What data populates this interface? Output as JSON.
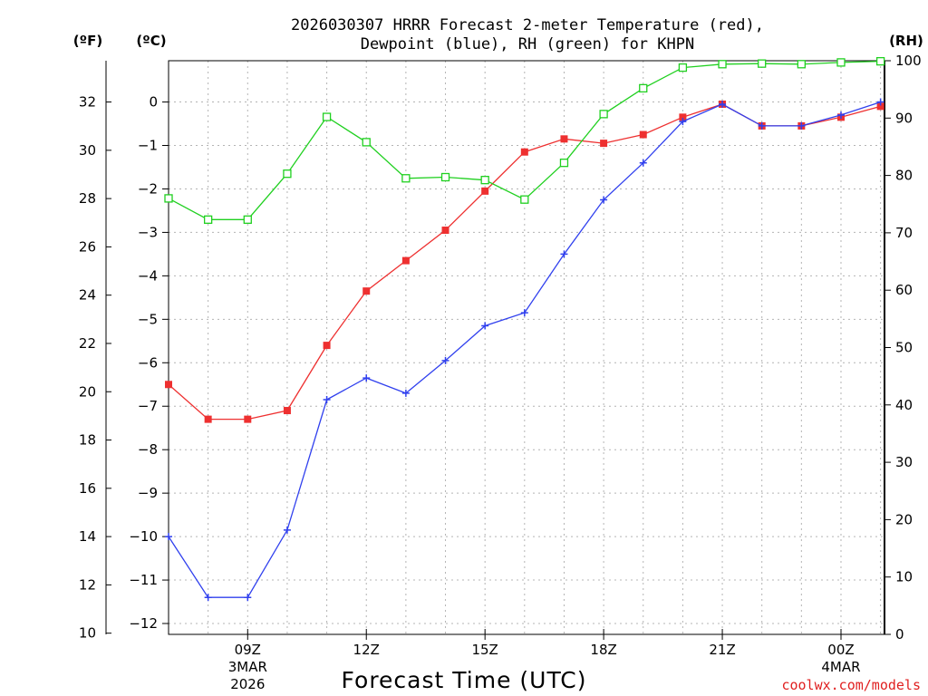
{
  "chart_data": {
    "type": "line",
    "title_line1": "2026030307 HRRR Forecast 2-meter Temperature (red),",
    "title_line2": "Dewpoint (blue), RH (green) for KHPN",
    "xlabel": "Forecast Time (UTC)",
    "credit": "coolwx.com/models",
    "credit_color": "#e02020",
    "units": {
      "fahrenheit": "(ºF)",
      "celsius": "(ºC)",
      "rh": "(RH)"
    },
    "x_hours": [
      7,
      8,
      9,
      10,
      11,
      12,
      13,
      14,
      15,
      16,
      17,
      18,
      19,
      20,
      21,
      22,
      23,
      24,
      25
    ],
    "xlim": [
      7,
      25.1
    ],
    "x_ticks": [
      {
        "hour": 9,
        "label": "09Z",
        "sub1": "3MAR",
        "sub2": "2026"
      },
      {
        "hour": 12,
        "label": "12Z",
        "sub1": "",
        "sub2": ""
      },
      {
        "hour": 15,
        "label": "15Z",
        "sub1": "",
        "sub2": ""
      },
      {
        "hour": 18,
        "label": "18Z",
        "sub1": "",
        "sub2": ""
      },
      {
        "hour": 21,
        "label": "21Z",
        "sub1": "",
        "sub2": ""
      },
      {
        "hour": 24,
        "label": "00Z",
        "sub1": "4MAR",
        "sub2": ""
      }
    ],
    "ylim_c": [
      -12.25,
      0.95
    ],
    "y_ticks_c": [
      "0",
      "−1",
      "−2",
      "−3",
      "−4",
      "−5",
      "−6",
      "−7",
      "−8",
      "−9",
      "−10",
      "−11",
      "−12"
    ],
    "y_ticks_f": [
      "32",
      "30",
      "28",
      "26",
      "24",
      "22",
      "20",
      "18",
      "16",
      "14",
      "12",
      "10"
    ],
    "ylim_rh": [
      0,
      100
    ],
    "y_ticks_rh": [
      "0",
      "10",
      "20",
      "30",
      "40",
      "50",
      "60",
      "70",
      "80",
      "90",
      "100"
    ],
    "series": [
      {
        "name": "Temperature",
        "unit": "C",
        "color": "#ee3030",
        "marker": "filled-square",
        "values": [
          -6.5,
          -7.3,
          -7.3,
          -7.1,
          -5.6,
          -4.35,
          -3.65,
          -2.95,
          -2.05,
          -1.15,
          -0.85,
          -0.95,
          -0.75,
          -0.35,
          -0.05,
          -0.55,
          -0.55,
          -0.35,
          -0.1
        ]
      },
      {
        "name": "Dewpoint",
        "unit": "C",
        "color": "#3040ee",
        "marker": "plus",
        "values": [
          -10.0,
          -11.4,
          -11.4,
          -9.85,
          -6.85,
          -6.35,
          -6.7,
          -5.95,
          -5.15,
          -4.85,
          -3.5,
          -2.25,
          -1.4,
          -0.45,
          -0.05,
          -0.55,
          -0.55,
          -0.3,
          0.0
        ]
      },
      {
        "name": "RH",
        "unit": "%",
        "color": "#20d020",
        "marker": "open-square",
        "values": [
          76,
          72.3,
          72.3,
          80.3,
          90.2,
          85.8,
          79.5,
          79.7,
          79.2,
          75.8,
          82.2,
          90.7,
          95.2,
          98.8,
          99.4,
          99.5,
          99.4,
          99.7,
          99.9
        ]
      }
    ]
  }
}
